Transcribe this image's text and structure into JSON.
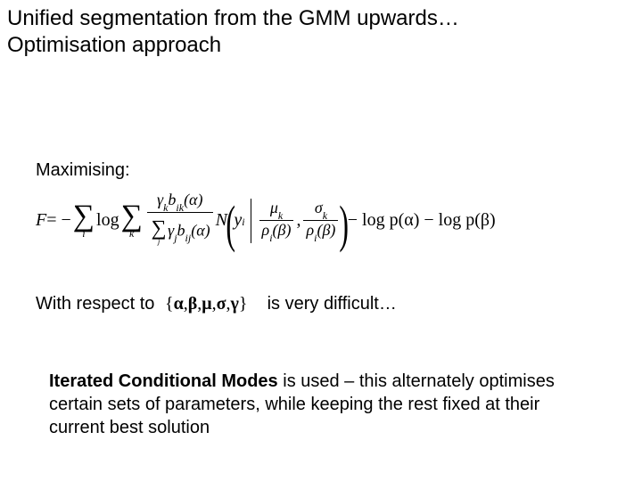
{
  "title_line1": "Unified segmentation from the GMM upwards…",
  "title_line2": "Optimisation approach",
  "label_maximising": "Maximising:",
  "formula": {
    "F": "F",
    "eq": " = −",
    "log": "log",
    "sum_i": "i",
    "sum_k": "k",
    "sum_j": "j",
    "num_gk": "γ",
    "num_gk_sub": "k",
    "num_b": "b",
    "num_b_sub": "ik",
    "num_alpha": "(α)",
    "den_gj": "γ",
    "den_gj_sub": "j",
    "den_b": "b",
    "den_b_sub": "ij",
    "den_alpha": "(α)",
    "N": "N",
    "y": "y",
    "y_sub": "i",
    "mu": "μ",
    "mu_sub": "k",
    "rho1": "ρ",
    "rho1_sub": "i",
    "rho1_arg": "(β)",
    "comma": ",",
    "sigma": "σ",
    "sigma_sub": "k",
    "rho2": "ρ",
    "rho2_sub": "i",
    "rho2_arg": "(β)",
    "tail": " − log p(α) − log p(β)"
  },
  "respect": {
    "prefix": "With respect to",
    "set_open": "{",
    "alpha": "α",
    "beta": "β",
    "mu": "μ",
    "sigma": "σ",
    "gamma": "γ",
    "sep": ", ",
    "sepb": ",",
    "set_close": "}",
    "suffix": "is very difficult…"
  },
  "body": {
    "bold": "Iterated Conditional Modes",
    "rest": " is used – this alternately optimises certain sets of parameters, while keeping the rest fixed at their current best solution"
  }
}
